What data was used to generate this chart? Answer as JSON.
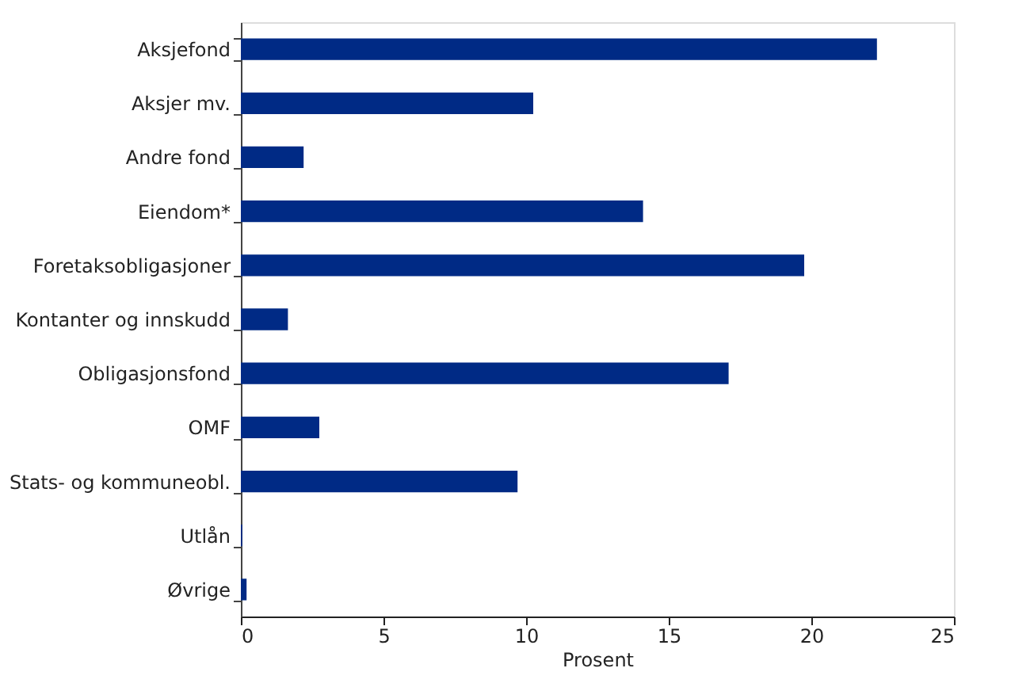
{
  "chart_data": {
    "type": "bar",
    "orientation": "horizontal",
    "xlabel": "Prosent",
    "categories": [
      "Aksjefond",
      "Aksjer mv.",
      "Andre fond",
      "Eiendom*",
      "Foretaksobligasjoner",
      "Kontanter og innskudd",
      "Obligasjonsfond",
      "OMF",
      "Stats- og kommuneobl.",
      "Utlån",
      "Øvrige"
    ],
    "values": [
      22.3,
      10.25,
      2.2,
      14.1,
      19.75,
      1.65,
      17.1,
      2.75,
      9.7,
      0.05,
      0.2
    ],
    "color": "#002a85",
    "xlim": [
      0,
      25
    ],
    "xticks": [
      0,
      5,
      10,
      15,
      20,
      25
    ],
    "grid": false
  }
}
